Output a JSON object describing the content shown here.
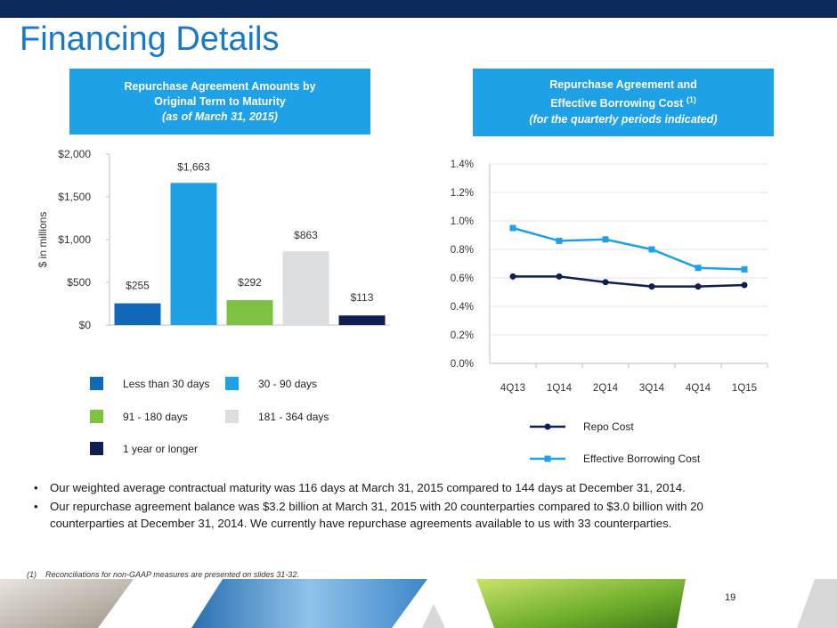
{
  "page": {
    "title": "Financing Details",
    "page_number": "19",
    "footnote_marker": "(1)",
    "footnote_text": "Reconciliations for non-GAAP measures are presented on slides 31-32."
  },
  "left_header": {
    "line1": "Repurchase Agreement Amounts by",
    "line2": "Original Term to Maturity",
    "line3": "(as of March 31, 2015)"
  },
  "right_header": {
    "line1": "Repurchase Agreement and",
    "line2": "Effective Borrowing Cost",
    "line2_sup": "(1)",
    "line3": "(for the quarterly periods indicated)"
  },
  "bullets": [
    "Our weighted average contractual maturity was 116 days at March 31, 2015 compared to 144 days at December 31, 2014.",
    "Our repurchase agreement balance was $3.2 billion at March 31, 2015 with 20 counterparties compared to $3.0 billion with 20 counterparties at December 31, 2014. We currently have repurchase agreements available to us with 33 counterparties."
  ],
  "bullet_symbol": "•",
  "chart_data": [
    {
      "type": "bar",
      "title": "Repurchase Agreement Amounts by Original Term to Maturity (as of March 31, 2015)",
      "ylabel": "$ in millions",
      "ylim": [
        0,
        2000
      ],
      "yticks": [
        0,
        500,
        1000,
        1500,
        2000
      ],
      "ytick_labels": [
        "$0",
        "$500",
        "$1,000",
        "$1,500",
        "$2,000"
      ],
      "categories": [
        "Less than 30 days",
        "30 - 90 days",
        "91 - 180 days",
        "181 - 364 days",
        "1 year or longer"
      ],
      "values": [
        255,
        1663,
        292,
        863,
        113
      ],
      "value_labels": [
        "$255",
        "$1,663",
        "$292",
        "$863",
        "$113"
      ],
      "colors": [
        "#1168b8",
        "#1ea1e6",
        "#7dc243",
        "#dcdddf",
        "#0e1f52"
      ],
      "legend_position": "bottom"
    },
    {
      "type": "line",
      "title": "Repurchase Agreement and Effective Borrowing Cost (for the quarterly periods indicated)",
      "categories": [
        "4Q13",
        "1Q14",
        "2Q14",
        "3Q14",
        "4Q14",
        "1Q15"
      ],
      "ylim": [
        0,
        1.4
      ],
      "yticks": [
        0,
        0.2,
        0.4,
        0.6,
        0.8,
        1.0,
        1.2,
        1.4
      ],
      "ytick_labels": [
        "0.0%",
        "0.2%",
        "0.4%",
        "0.6%",
        "0.8%",
        "1.0%",
        "1.2%",
        "1.4%"
      ],
      "series": [
        {
          "name": "Repo Cost",
          "values": [
            0.61,
            0.61,
            0.57,
            0.54,
            0.54,
            0.55
          ],
          "color": "#0e1f52",
          "marker": "circle"
        },
        {
          "name": "Effective Borrowing Cost",
          "values": [
            0.95,
            0.86,
            0.87,
            0.8,
            0.67,
            0.66
          ],
          "color": "#1ea1e6",
          "marker": "square"
        }
      ],
      "grid": true,
      "legend_position": "bottom"
    }
  ]
}
